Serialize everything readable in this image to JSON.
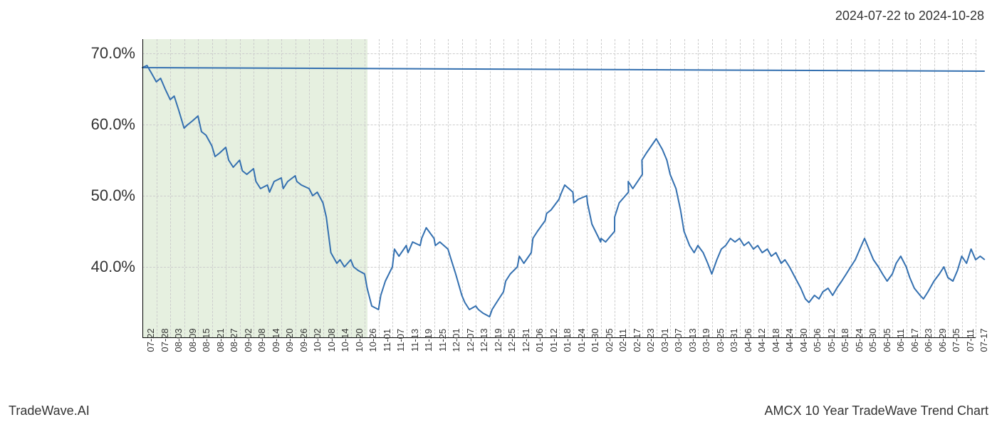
{
  "header": {
    "date_range": "2024-07-22 to 2024-10-28"
  },
  "footer": {
    "left": "TradeWave.AI",
    "right": "AMCX 10 Year TradeWave Trend Chart"
  },
  "chart": {
    "type": "line",
    "background_color": "#ffffff",
    "grid_color": "#cccccc",
    "grid_dash": "2,3",
    "line_color": "#3470b0",
    "line_width": 2,
    "highlight": {
      "fill": "#e6f0e0",
      "x_start": "07-22",
      "x_end": "10-28"
    },
    "y_axis": {
      "min": 30,
      "max": 72,
      "ticks": [
        40,
        50,
        60,
        70
      ],
      "tick_labels": [
        "40.0%",
        "50.0%",
        "60.0%",
        "70.0%"
      ],
      "label_fontsize": 22,
      "label_color": "#333333"
    },
    "x_axis": {
      "labels": [
        "07-22",
        "07-28",
        "08-03",
        "08-09",
        "08-15",
        "08-21",
        "08-27",
        "09-02",
        "09-08",
        "09-14",
        "09-20",
        "09-26",
        "10-02",
        "10-08",
        "10-14",
        "10-20",
        "10-26",
        "11-01",
        "11-07",
        "11-13",
        "11-19",
        "11-25",
        "12-01",
        "12-07",
        "12-13",
        "12-19",
        "12-25",
        "12-31",
        "01-06",
        "01-12",
        "01-18",
        "01-24",
        "01-30",
        "02-05",
        "02-11",
        "02-17",
        "02-23",
        "03-01",
        "03-07",
        "03-13",
        "03-19",
        "03-25",
        "03-31",
        "04-06",
        "04-12",
        "04-18",
        "04-24",
        "04-30",
        "05-06",
        "05-12",
        "05-18",
        "05-24",
        "05-30",
        "06-05",
        "06-11",
        "06-17",
        "06-23",
        "06-29",
        "07-05",
        "07-11",
        "07-17"
      ],
      "label_fontsize": 13,
      "label_color": "#333333",
      "label_rotation": -90
    },
    "series": {
      "name": "AMCX trend",
      "points": [
        {
          "x": "07-21",
          "y": 67.5
        },
        {
          "x": "07-22",
          "y": 68.0
        },
        {
          "x": "07-24",
          "y": 68.3
        },
        {
          "x": "07-26",
          "y": 67.2
        },
        {
          "x": "07-28",
          "y": 66.0
        },
        {
          "x": "07-30",
          "y": 66.5
        },
        {
          "x": "08-01",
          "y": 65.0
        },
        {
          "x": "08-03",
          "y": 63.5
        },
        {
          "x": "08-05",
          "y": 64.0
        },
        {
          "x": "08-07",
          "y": 62.0
        },
        {
          "x": "08-09",
          "y": 59.5
        },
        {
          "x": "08-11",
          "y": 60.0
        },
        {
          "x": "08-13",
          "y": 60.5
        },
        {
          "x": "08-15",
          "y": 61.2
        },
        {
          "x": "08-17",
          "y": 59.0
        },
        {
          "x": "08-19",
          "y": 58.5
        },
        {
          "x": "08-21",
          "y": 57.0
        },
        {
          "x": "08-23",
          "y": 55.5
        },
        {
          "x": "08-25",
          "y": 56.0
        },
        {
          "x": "08-27",
          "y": 56.8
        },
        {
          "x": "08-29",
          "y": 55.0
        },
        {
          "x": "08-31",
          "y": 54.0
        },
        {
          "x": "09-02",
          "y": 55.0
        },
        {
          "x": "09-04",
          "y": 53.5
        },
        {
          "x": "09-06",
          "y": 53.0
        },
        {
          "x": "09-08",
          "y": 53.8
        },
        {
          "x": "09-10",
          "y": 52.0
        },
        {
          "x": "09-12",
          "y": 51.0
        },
        {
          "x": "09-14",
          "y": 51.5
        },
        {
          "x": "09-16",
          "y": 50.5
        },
        {
          "x": "09-18",
          "y": 52.0
        },
        {
          "x": "09-20",
          "y": 52.5
        },
        {
          "x": "09-22",
          "y": 51.0
        },
        {
          "x": "09-24",
          "y": 52.0
        },
        {
          "x": "09-26",
          "y": 52.8
        },
        {
          "x": "09-28",
          "y": 52.0
        },
        {
          "x": "09-30",
          "y": 51.5
        },
        {
          "x": "10-02",
          "y": 51.0
        },
        {
          "x": "10-04",
          "y": 50.0
        },
        {
          "x": "10-06",
          "y": 50.5
        },
        {
          "x": "10-08",
          "y": 49.0
        },
        {
          "x": "10-10",
          "y": 47.0
        },
        {
          "x": "10-12",
          "y": 42.0
        },
        {
          "x": "10-14",
          "y": 40.5
        },
        {
          "x": "10-16",
          "y": 41.0
        },
        {
          "x": "10-18",
          "y": 40.0
        },
        {
          "x": "10-20",
          "y": 41.0
        },
        {
          "x": "10-22",
          "y": 40.0
        },
        {
          "x": "10-24",
          "y": 39.5
        },
        {
          "x": "10-26",
          "y": 39.0
        },
        {
          "x": "10-28",
          "y": 37.0
        },
        {
          "x": "10-30",
          "y": 34.5
        },
        {
          "x": "11-01",
          "y": 34.0
        },
        {
          "x": "11-03",
          "y": 36.0
        },
        {
          "x": "11-05",
          "y": 38.0
        },
        {
          "x": "11-07",
          "y": 40.0
        },
        {
          "x": "11-09",
          "y": 42.5
        },
        {
          "x": "11-11",
          "y": 41.5
        },
        {
          "x": "11-13",
          "y": 43.0
        },
        {
          "x": "11-15",
          "y": 42.0
        },
        {
          "x": "11-17",
          "y": 43.5
        },
        {
          "x": "11-19",
          "y": 43.0
        },
        {
          "x": "11-21",
          "y": 44.0
        },
        {
          "x": "11-23",
          "y": 45.5
        },
        {
          "x": "11-25",
          "y": 44.0
        },
        {
          "x": "11-27",
          "y": 43.0
        },
        {
          "x": "11-29",
          "y": 43.5
        },
        {
          "x": "12-01",
          "y": 42.5
        },
        {
          "x": "12-03",
          "y": 41.0
        },
        {
          "x": "12-05",
          "y": 39.0
        },
        {
          "x": "12-07",
          "y": 36.0
        },
        {
          "x": "12-09",
          "y": 35.0
        },
        {
          "x": "12-11",
          "y": 34.0
        },
        {
          "x": "12-13",
          "y": 34.5
        },
        {
          "x": "12-15",
          "y": 34.0
        },
        {
          "x": "12-17",
          "y": 33.5
        },
        {
          "x": "12-19",
          "y": 33.0
        },
        {
          "x": "12-21",
          "y": 34.0
        },
        {
          "x": "12-23",
          "y": 35.0
        },
        {
          "x": "12-25",
          "y": 36.5
        },
        {
          "x": "12-27",
          "y": 38.0
        },
        {
          "x": "12-29",
          "y": 39.0
        },
        {
          "x": "12-31",
          "y": 40.0
        },
        {
          "x": "01-02",
          "y": 41.5
        },
        {
          "x": "01-04",
          "y": 40.5
        },
        {
          "x": "01-06",
          "y": 42.0
        },
        {
          "x": "01-08",
          "y": 44.0
        },
        {
          "x": "01-10",
          "y": 45.0
        },
        {
          "x": "01-12",
          "y": 46.5
        },
        {
          "x": "01-14",
          "y": 47.5
        },
        {
          "x": "01-16",
          "y": 48.0
        },
        {
          "x": "01-18",
          "y": 49.5
        },
        {
          "x": "01-20",
          "y": 50.0
        },
        {
          "x": "01-22",
          "y": 51.5
        },
        {
          "x": "01-24",
          "y": 50.5
        },
        {
          "x": "01-26",
          "y": 49.0
        },
        {
          "x": "01-28",
          "y": 49.5
        },
        {
          "x": "01-30",
          "y": 50.0
        },
        {
          "x": "02-01",
          "y": 49.0
        },
        {
          "x": "02-03",
          "y": 46.0
        },
        {
          "x": "02-05",
          "y": 43.5
        },
        {
          "x": "02-07",
          "y": 44.0
        },
        {
          "x": "02-09",
          "y": 43.5
        },
        {
          "x": "02-11",
          "y": 45.0
        },
        {
          "x": "02-13",
          "y": 47.0
        },
        {
          "x": "02-15",
          "y": 49.0
        },
        {
          "x": "02-17",
          "y": 50.5
        },
        {
          "x": "02-19",
          "y": 52.0
        },
        {
          "x": "02-21",
          "y": 51.0
        },
        {
          "x": "02-23",
          "y": 53.0
        },
        {
          "x": "02-25",
          "y": 55.0
        },
        {
          "x": "02-27",
          "y": 56.0
        },
        {
          "x": "03-01",
          "y": 58.0
        },
        {
          "x": "03-03",
          "y": 56.5
        },
        {
          "x": "03-05",
          "y": 55.0
        },
        {
          "x": "03-07",
          "y": 53.0
        },
        {
          "x": "03-09",
          "y": 51.0
        },
        {
          "x": "03-11",
          "y": 48.0
        },
        {
          "x": "03-13",
          "y": 45.0
        },
        {
          "x": "03-15",
          "y": 43.0
        },
        {
          "x": "03-17",
          "y": 42.0
        },
        {
          "x": "03-19",
          "y": 43.0
        },
        {
          "x": "03-21",
          "y": 42.0
        },
        {
          "x": "03-23",
          "y": 40.5
        },
        {
          "x": "03-25",
          "y": 39.0
        },
        {
          "x": "03-27",
          "y": 41.0
        },
        {
          "x": "03-29",
          "y": 42.5
        },
        {
          "x": "03-31",
          "y": 43.0
        },
        {
          "x": "04-02",
          "y": 44.0
        },
        {
          "x": "04-04",
          "y": 43.5
        },
        {
          "x": "04-06",
          "y": 44.0
        },
        {
          "x": "04-08",
          "y": 43.0
        },
        {
          "x": "04-10",
          "y": 43.5
        },
        {
          "x": "04-12",
          "y": 42.5
        },
        {
          "x": "04-14",
          "y": 43.0
        },
        {
          "x": "04-16",
          "y": 42.0
        },
        {
          "x": "04-18",
          "y": 42.5
        },
        {
          "x": "04-20",
          "y": 41.5
        },
        {
          "x": "04-22",
          "y": 42.0
        },
        {
          "x": "04-24",
          "y": 40.5
        },
        {
          "x": "04-26",
          "y": 41.0
        },
        {
          "x": "04-28",
          "y": 40.0
        },
        {
          "x": "04-30",
          "y": 38.5
        },
        {
          "x": "05-02",
          "y": 37.0
        },
        {
          "x": "05-04",
          "y": 35.5
        },
        {
          "x": "05-06",
          "y": 35.0
        },
        {
          "x": "05-08",
          "y": 36.0
        },
        {
          "x": "05-10",
          "y": 35.5
        },
        {
          "x": "05-12",
          "y": 36.5
        },
        {
          "x": "05-14",
          "y": 37.0
        },
        {
          "x": "05-16",
          "y": 36.0
        },
        {
          "x": "05-18",
          "y": 37.0
        },
        {
          "x": "05-20",
          "y": 38.0
        },
        {
          "x": "05-22",
          "y": 39.0
        },
        {
          "x": "05-24",
          "y": 40.0
        },
        {
          "x": "05-26",
          "y": 41.0
        },
        {
          "x": "05-28",
          "y": 42.5
        },
        {
          "x": "05-30",
          "y": 44.0
        },
        {
          "x": "06-01",
          "y": 42.5
        },
        {
          "x": "06-03",
          "y": 41.0
        },
        {
          "x": "06-05",
          "y": 40.0
        },
        {
          "x": "06-07",
          "y": 39.0
        },
        {
          "x": "06-09",
          "y": 38.0
        },
        {
          "x": "06-11",
          "y": 39.0
        },
        {
          "x": "06-13",
          "y": 40.5
        },
        {
          "x": "06-15",
          "y": 41.5
        },
        {
          "x": "06-17",
          "y": 40.0
        },
        {
          "x": "06-19",
          "y": 38.5
        },
        {
          "x": "06-21",
          "y": 37.0
        },
        {
          "x": "06-23",
          "y": 36.0
        },
        {
          "x": "06-25",
          "y": 35.5
        },
        {
          "x": "06-27",
          "y": 36.5
        },
        {
          "x": "06-29",
          "y": 38.0
        },
        {
          "x": "07-01",
          "y": 39.0
        },
        {
          "x": "07-03",
          "y": 40.0
        },
        {
          "x": "07-05",
          "y": 38.5
        },
        {
          "x": "07-07",
          "y": 38.0
        },
        {
          "x": "07-09",
          "y": 39.5
        },
        {
          "x": "07-11",
          "y": 41.5
        },
        {
          "x": "07-13",
          "y": 40.5
        },
        {
          "x": "07-15",
          "y": 42.5
        },
        {
          "x": "07-17",
          "y": 41.0
        },
        {
          "x": "07-19",
          "y": 41.5
        },
        {
          "x": "07-21",
          "y": 41.0
        }
      ]
    }
  }
}
